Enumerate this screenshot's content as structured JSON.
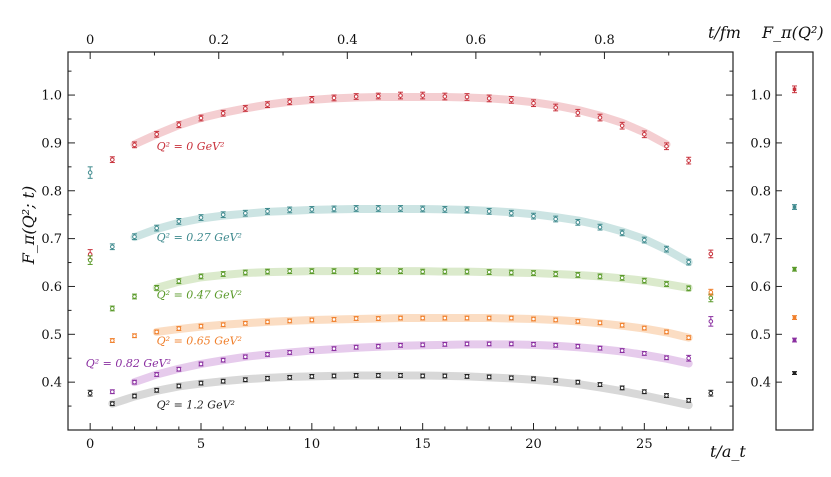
{
  "chart_data": {
    "type": "scatter",
    "xlabel": "t/a_t",
    "x2label": "t/fm",
    "ylabel": "F_π(Q²; t)",
    "inset_title": "F_π(Q²)",
    "xlim": [
      -1,
      29
    ],
    "ylim": [
      0.3,
      1.09
    ],
    "x2lim": [
      -0.0345,
      1.0
    ],
    "x_ticks": [
      0,
      5,
      10,
      15,
      20,
      25
    ],
    "x2_ticks": [
      0,
      0.2,
      0.4,
      0.6,
      0.8
    ],
    "x2_ticklabels": [
      "0",
      "0.2",
      "0.4",
      "0.6",
      "0.8"
    ],
    "y_ticks": [
      0.4,
      0.5,
      0.6,
      0.7,
      0.8,
      0.9,
      1.0
    ],
    "y_ticklabels": [
      "0.4",
      "0.5",
      "0.6",
      "0.7",
      "0.8",
      "0.9",
      "1.0"
    ],
    "series": [
      {
        "name": "Q² = 0 GeV²",
        "annotation": {
          "text": "Q² = 0 GeV²",
          "x": 3,
          "y": 0.885
        },
        "color": "#c8323c",
        "band_color": "#f3c9cc",
        "x": [
          0,
          1,
          2,
          3,
          4,
          5,
          6,
          7,
          8,
          9,
          10,
          11,
          12,
          13,
          14,
          15,
          16,
          17,
          18,
          19,
          20,
          21,
          22,
          23,
          24,
          25,
          26,
          27
        ],
        "y": [
          0.667,
          0.865,
          0.896,
          0.918,
          0.938,
          0.952,
          0.962,
          0.972,
          0.98,
          0.986,
          0.991,
          0.994,
          0.997,
          0.998,
          0.999,
          0.999,
          0.997,
          0.996,
          0.993,
          0.99,
          0.983,
          0.974,
          0.963,
          0.953,
          0.936,
          0.918,
          0.893,
          0.863
        ],
        "err": [
          0.01,
          0.006,
          0.006,
          0.006,
          0.006,
          0.006,
          0.006,
          0.006,
          0.006,
          0.006,
          0.006,
          0.006,
          0.006,
          0.006,
          0.007,
          0.007,
          0.007,
          0.007,
          0.007,
          0.007,
          0.007,
          0.007,
          0.007,
          0.007,
          0.007,
          0.007,
          0.007,
          0.007
        ],
        "band_x": [
          2,
          26
        ],
        "band": [
          0.897,
          0.918,
          0.937,
          0.952,
          0.963,
          0.972,
          0.98,
          0.986,
          0.99,
          0.993,
          0.995,
          0.996,
          0.996,
          0.996,
          0.996,
          0.995,
          0.993,
          0.99,
          0.985,
          0.978,
          0.969,
          0.957,
          0.942,
          0.922,
          0.897
        ],
        "extra": [
          {
            "x": 28,
            "y": 0.668,
            "err": 0.008
          }
        ],
        "inset": {
          "y": 1.012,
          "err": 0.007
        }
      },
      {
        "name": "Q² = 0.27 GeV²",
        "annotation": {
          "text": "Q² = 0.27 GeV²",
          "x": 3,
          "y": 0.695
        },
        "color": "#3f8a8e",
        "band_color": "#c6e1e0",
        "x": [
          0,
          1,
          2,
          3,
          4,
          5,
          6,
          7,
          8,
          9,
          10,
          11,
          12,
          13,
          14,
          15,
          16,
          17,
          18,
          19,
          20,
          21,
          22,
          23,
          24,
          25,
          26,
          27
        ],
        "y": [
          0.838,
          0.683,
          0.704,
          0.722,
          0.736,
          0.744,
          0.75,
          0.753,
          0.757,
          0.76,
          0.761,
          0.762,
          0.763,
          0.763,
          0.763,
          0.762,
          0.761,
          0.76,
          0.757,
          0.753,
          0.747,
          0.741,
          0.734,
          0.724,
          0.712,
          0.697,
          0.678,
          0.651
        ],
        "err": [
          0.012,
          0.006,
          0.006,
          0.006,
          0.006,
          0.006,
          0.006,
          0.006,
          0.006,
          0.006,
          0.006,
          0.006,
          0.006,
          0.006,
          0.006,
          0.006,
          0.006,
          0.006,
          0.006,
          0.006,
          0.006,
          0.006,
          0.006,
          0.006,
          0.006,
          0.006,
          0.006,
          0.006
        ],
        "band_x": [
          2,
          27
        ],
        "band": [
          0.703,
          0.72,
          0.733,
          0.742,
          0.748,
          0.752,
          0.756,
          0.758,
          0.76,
          0.761,
          0.762,
          0.762,
          0.762,
          0.762,
          0.761,
          0.76,
          0.758,
          0.755,
          0.751,
          0.745,
          0.738,
          0.728,
          0.715,
          0.699,
          0.677,
          0.651
        ],
        "extra": [],
        "inset": {
          "y": 0.766,
          "err": 0.005
        }
      },
      {
        "name": "Q² = 0.47 GeV²",
        "annotation": {
          "text": "Q² = 0.47 GeV²",
          "x": 3,
          "y": 0.575
        },
        "color": "#5a9a2a",
        "band_color": "#d7e8c6",
        "x": [
          0,
          1,
          2,
          3,
          4,
          5,
          6,
          7,
          8,
          9,
          10,
          11,
          12,
          13,
          14,
          15,
          16,
          17,
          18,
          19,
          20,
          21,
          22,
          23,
          24,
          25,
          26,
          27
        ],
        "y": [
          0.655,
          0.554,
          0.579,
          0.597,
          0.611,
          0.621,
          0.626,
          0.629,
          0.631,
          0.632,
          0.632,
          0.632,
          0.632,
          0.632,
          0.632,
          0.631,
          0.631,
          0.631,
          0.63,
          0.629,
          0.628,
          0.626,
          0.624,
          0.621,
          0.618,
          0.612,
          0.605,
          0.596
        ],
        "err": [
          0.009,
          0.005,
          0.005,
          0.005,
          0.005,
          0.005,
          0.005,
          0.005,
          0.005,
          0.005,
          0.005,
          0.005,
          0.005,
          0.005,
          0.005,
          0.005,
          0.005,
          0.005,
          0.005,
          0.005,
          0.005,
          0.005,
          0.005,
          0.005,
          0.005,
          0.005,
          0.005,
          0.005
        ],
        "band_x": [
          3,
          27
        ],
        "band": [
          0.597,
          0.61,
          0.619,
          0.624,
          0.628,
          0.63,
          0.631,
          0.632,
          0.632,
          0.632,
          0.632,
          0.632,
          0.632,
          0.631,
          0.631,
          0.63,
          0.629,
          0.628,
          0.626,
          0.624,
          0.621,
          0.617,
          0.612,
          0.605,
          0.597
        ],
        "extra": [
          {
            "x": 28,
            "y": 0.576,
            "err": 0.008
          }
        ],
        "inset": {
          "y": 0.636,
          "err": 0.004
        }
      },
      {
        "name": "Q² = 0.65 GeV²",
        "annotation": {
          "text": "Q² = 0.65 GeV²",
          "x": 3,
          "y": 0.479
        },
        "color": "#f07f2b",
        "band_color": "#fbd9bc",
        "x": [
          1,
          2,
          3,
          4,
          5,
          6,
          7,
          8,
          9,
          10,
          11,
          12,
          13,
          14,
          15,
          16,
          17,
          18,
          19,
          20,
          21,
          22,
          23,
          24,
          25,
          26,
          27
        ],
        "y": [
          0.487,
          0.497,
          0.505,
          0.512,
          0.517,
          0.52,
          0.523,
          0.526,
          0.528,
          0.53,
          0.531,
          0.533,
          0.533,
          0.534,
          0.534,
          0.534,
          0.534,
          0.534,
          0.534,
          0.532,
          0.53,
          0.527,
          0.524,
          0.519,
          0.513,
          0.505,
          0.493
        ],
        "err": [
          0.004,
          0.004,
          0.004,
          0.004,
          0.004,
          0.004,
          0.004,
          0.004,
          0.004,
          0.004,
          0.004,
          0.004,
          0.004,
          0.004,
          0.004,
          0.004,
          0.004,
          0.004,
          0.004,
          0.004,
          0.004,
          0.004,
          0.004,
          0.004,
          0.004,
          0.004,
          0.004
        ],
        "band_x": [
          3,
          27
        ],
        "band": [
          0.505,
          0.511,
          0.516,
          0.52,
          0.523,
          0.526,
          0.528,
          0.53,
          0.531,
          0.532,
          0.533,
          0.534,
          0.534,
          0.534,
          0.534,
          0.534,
          0.533,
          0.532,
          0.53,
          0.527,
          0.523,
          0.518,
          0.512,
          0.504,
          0.493
        ],
        "extra": [
          {
            "x": 28,
            "y": 0.588,
            "err": 0.006
          }
        ],
        "inset": {
          "y": 0.535,
          "err": 0.004
        }
      },
      {
        "name": "Q² = 0.82 GeV²",
        "annotation": {
          "text": "Q² = 0.82 GeV²",
          "x": -0.2,
          "y": 0.432
        },
        "color": "#8a2fa0",
        "band_color": "#e3c5ea",
        "x": [
          1,
          2,
          3,
          4,
          5,
          6,
          7,
          8,
          9,
          10,
          11,
          12,
          13,
          14,
          15,
          16,
          17,
          18,
          19,
          20,
          21,
          22,
          23,
          24,
          25,
          26,
          27
        ],
        "y": [
          0.38,
          0.4,
          0.416,
          0.427,
          0.438,
          0.446,
          0.453,
          0.458,
          0.462,
          0.466,
          0.47,
          0.473,
          0.475,
          0.477,
          0.478,
          0.479,
          0.48,
          0.48,
          0.48,
          0.479,
          0.477,
          0.475,
          0.471,
          0.466,
          0.46,
          0.451,
          0.45
        ],
        "err": [
          0.004,
          0.004,
          0.004,
          0.004,
          0.004,
          0.004,
          0.004,
          0.004,
          0.004,
          0.004,
          0.004,
          0.004,
          0.004,
          0.004,
          0.004,
          0.004,
          0.004,
          0.004,
          0.004,
          0.004,
          0.004,
          0.004,
          0.004,
          0.004,
          0.004,
          0.004,
          0.006
        ],
        "band_x": [
          2,
          27
        ],
        "band": [
          0.4,
          0.416,
          0.428,
          0.438,
          0.446,
          0.453,
          0.458,
          0.462,
          0.466,
          0.469,
          0.472,
          0.474,
          0.476,
          0.477,
          0.478,
          0.479,
          0.479,
          0.479,
          0.478,
          0.476,
          0.473,
          0.469,
          0.464,
          0.457,
          0.449,
          0.439
        ],
        "extra": [
          {
            "x": 28,
            "y": 0.527,
            "err": 0.01
          }
        ],
        "inset": {
          "y": 0.488,
          "err": 0.004
        }
      },
      {
        "name": "Q² = 1.2 GeV²",
        "annotation": {
          "text": "Q² = 1.2 GeV²",
          "x": 3,
          "y": 0.345
        },
        "color": "#222222",
        "band_color": "#d4d4d4",
        "x": [
          0,
          1,
          2,
          3,
          4,
          5,
          6,
          7,
          8,
          9,
          10,
          11,
          12,
          13,
          14,
          15,
          16,
          17,
          18,
          19,
          20,
          21,
          22,
          23,
          24,
          25,
          26,
          27
        ],
        "y": [
          0.377,
          0.355,
          0.371,
          0.383,
          0.392,
          0.398,
          0.402,
          0.405,
          0.408,
          0.41,
          0.412,
          0.413,
          0.414,
          0.414,
          0.414,
          0.413,
          0.413,
          0.412,
          0.411,
          0.409,
          0.407,
          0.404,
          0.4,
          0.395,
          0.388,
          0.38,
          0.372,
          0.362
        ],
        "err": [
          0.006,
          0.004,
          0.004,
          0.004,
          0.004,
          0.004,
          0.004,
          0.004,
          0.004,
          0.004,
          0.004,
          0.004,
          0.004,
          0.004,
          0.004,
          0.004,
          0.004,
          0.004,
          0.004,
          0.004,
          0.004,
          0.004,
          0.004,
          0.004,
          0.004,
          0.004,
          0.004,
          0.004
        ],
        "band_x": [
          1,
          27
        ],
        "band": [
          0.355,
          0.37,
          0.382,
          0.391,
          0.397,
          0.402,
          0.406,
          0.409,
          0.411,
          0.412,
          0.413,
          0.414,
          0.414,
          0.414,
          0.414,
          0.413,
          0.412,
          0.41,
          0.408,
          0.405,
          0.401,
          0.396,
          0.389,
          0.381,
          0.372,
          0.362,
          0.352
        ],
        "extra": [
          {
            "x": 28,
            "y": 0.377,
            "err": 0.006
          }
        ],
        "inset": {
          "y": 0.419,
          "err": 0.003
        }
      }
    ]
  }
}
